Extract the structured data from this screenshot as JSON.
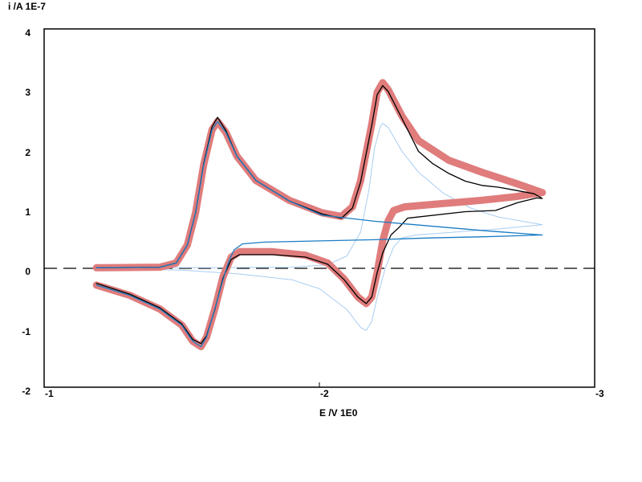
{
  "chart_data": {
    "type": "line",
    "ylabel": "i /A  1E-7",
    "xlabel": "E /V  1E0",
    "xlim": [
      -1,
      -3
    ],
    "ylim": [
      -2,
      4
    ],
    "x_ticks": [
      "-1",
      "-2",
      "-3"
    ],
    "y_ticks": [
      "4",
      "3",
      "2",
      "1",
      "0",
      "-1",
      "-2"
    ],
    "zero_line": "dashed",
    "grid": false,
    "series": [
      {
        "color": "#a8cdf2",
        "style": "thin",
        "points": [
          [
            -1.19,
            0
          ],
          [
            -1.6,
            0
          ],
          [
            -1.9,
            0.01
          ],
          [
            -2.03,
            0.05
          ],
          [
            -2.1,
            0.2
          ],
          [
            -2.15,
            0.6
          ],
          [
            -2.18,
            1.3
          ],
          [
            -2.2,
            2.0
          ],
          [
            -2.22,
            2.35
          ],
          [
            -2.23,
            2.42
          ],
          [
            -2.25,
            2.35
          ],
          [
            -2.3,
            1.95
          ],
          [
            -2.36,
            1.6
          ],
          [
            -2.45,
            1.25
          ],
          [
            -2.55,
            1.0
          ],
          [
            -2.65,
            0.85
          ],
          [
            -2.81,
            0.72
          ],
          [
            -2.65,
            0.65
          ],
          [
            -2.5,
            0.6
          ],
          [
            -2.35,
            0.55
          ],
          [
            -2.3,
            0.5
          ],
          [
            -2.27,
            0.35
          ],
          [
            -2.24,
            0.0
          ],
          [
            -2.21,
            -0.5
          ],
          [
            -2.19,
            -0.9
          ],
          [
            -2.17,
            -1.05
          ],
          [
            -2.15,
            -1.0
          ],
          [
            -2.1,
            -0.7
          ],
          [
            -2.0,
            -0.35
          ],
          [
            -1.9,
            -0.2
          ],
          [
            -1.7,
            -0.1
          ],
          [
            -1.5,
            -0.04
          ],
          [
            -1.19,
            -0.01
          ]
        ]
      },
      {
        "color": "#e07c7c",
        "style": "circles",
        "points": [
          [
            -1.19,
            0
          ],
          [
            -1.42,
            0.01
          ],
          [
            -1.48,
            0.08
          ],
          [
            -1.52,
            0.38
          ],
          [
            -1.55,
            0.92
          ],
          [
            -1.58,
            1.73
          ],
          [
            -1.61,
            2.31
          ],
          [
            -1.63,
            2.45
          ],
          [
            -1.66,
            2.27
          ],
          [
            -1.7,
            1.87
          ],
          [
            -1.77,
            1.46
          ],
          [
            -1.89,
            1.13
          ],
          [
            -2.01,
            0.92
          ],
          [
            -2.08,
            0.86
          ],
          [
            -2.12,
            1.02
          ],
          [
            -2.15,
            1.46
          ],
          [
            -2.19,
            2.4
          ],
          [
            -2.21,
            2.94
          ],
          [
            -2.23,
            3.1
          ],
          [
            -2.25,
            2.98
          ],
          [
            -2.3,
            2.54
          ],
          [
            -2.36,
            2.13
          ],
          [
            -2.47,
            1.8
          ],
          [
            -2.59,
            1.6
          ],
          [
            -2.71,
            1.42
          ],
          [
            -2.81,
            1.26
          ],
          [
            -2.71,
            1.19
          ],
          [
            -2.59,
            1.13
          ],
          [
            -2.41,
            1.06
          ],
          [
            -2.31,
            1.02
          ],
          [
            -2.27,
            0.96
          ],
          [
            -2.25,
            0.79
          ],
          [
            -2.23,
            0.45
          ],
          [
            -2.21,
            -0.08
          ],
          [
            -2.19,
            -0.49
          ],
          [
            -2.17,
            -0.6
          ],
          [
            -2.14,
            -0.49
          ],
          [
            -2.09,
            -0.19
          ],
          [
            -2.03,
            0.08
          ],
          [
            -1.95,
            0.21
          ],
          [
            -1.83,
            0.27
          ],
          [
            -1.71,
            0.27
          ],
          [
            -1.68,
            0.18
          ],
          [
            -1.65,
            -0.15
          ],
          [
            -1.62,
            -0.69
          ],
          [
            -1.59,
            -1.16
          ],
          [
            -1.57,
            -1.32
          ],
          [
            -1.54,
            -1.23
          ],
          [
            -1.5,
            -0.96
          ],
          [
            -1.42,
            -0.69
          ],
          [
            -1.31,
            -0.46
          ],
          [
            -1.19,
            -0.29
          ]
        ]
      },
      {
        "color": "#000000",
        "style": "line",
        "points": [
          [
            -1.19,
            0
          ],
          [
            -1.42,
            0.01
          ],
          [
            -1.48,
            0.08
          ],
          [
            -1.52,
            0.38
          ],
          [
            -1.55,
            0.92
          ],
          [
            -1.58,
            1.75
          ],
          [
            -1.61,
            2.36
          ],
          [
            -1.63,
            2.52
          ],
          [
            -1.66,
            2.3
          ],
          [
            -1.7,
            1.87
          ],
          [
            -1.77,
            1.46
          ],
          [
            -1.89,
            1.12
          ],
          [
            -2.01,
            0.9
          ],
          [
            -2.08,
            0.83
          ],
          [
            -2.12,
            1.0
          ],
          [
            -2.15,
            1.44
          ],
          [
            -2.19,
            2.38
          ],
          [
            -2.21,
            2.9
          ],
          [
            -2.23,
            3.05
          ],
          [
            -2.25,
            2.95
          ],
          [
            -2.3,
            2.5
          ],
          [
            -2.36,
            1.95
          ],
          [
            -2.41,
            1.75
          ],
          [
            -2.47,
            1.58
          ],
          [
            -2.53,
            1.45
          ],
          [
            -2.59,
            1.38
          ],
          [
            -2.65,
            1.35
          ],
          [
            -2.71,
            1.3
          ],
          [
            -2.78,
            1.24
          ],
          [
            -2.81,
            1.16
          ],
          [
            -2.79,
            1.17
          ],
          [
            -2.72,
            1.09
          ],
          [
            -2.64,
            0.96
          ],
          [
            -2.53,
            0.94
          ],
          [
            -2.32,
            0.83
          ],
          [
            -2.29,
            0.68
          ],
          [
            -2.26,
            0.55
          ],
          [
            -2.23,
            0.25
          ],
          [
            -2.21,
            -0.08
          ],
          [
            -2.19,
            -0.49
          ],
          [
            -2.17,
            -0.6
          ],
          [
            -2.14,
            -0.49
          ],
          [
            -2.09,
            -0.2
          ],
          [
            -2.03,
            0.06
          ],
          [
            -1.95,
            0.18
          ],
          [
            -1.83,
            0.22
          ],
          [
            -1.71,
            0.22
          ],
          [
            -1.68,
            0.14
          ],
          [
            -1.65,
            -0.17
          ],
          [
            -1.62,
            -0.7
          ],
          [
            -1.59,
            -1.14
          ],
          [
            -1.57,
            -1.27
          ],
          [
            -1.54,
            -1.2
          ],
          [
            -1.5,
            -0.94
          ],
          [
            -1.42,
            -0.67
          ],
          [
            -1.31,
            -0.44
          ],
          [
            -1.19,
            -0.26
          ]
        ]
      },
      {
        "color": "#1a7cc4",
        "style": "line",
        "points": [
          [
            -1.19,
            0
          ],
          [
            -1.42,
            0.01
          ],
          [
            -1.48,
            0.08
          ],
          [
            -1.52,
            0.38
          ],
          [
            -1.55,
            0.92
          ],
          [
            -1.58,
            1.73
          ],
          [
            -1.61,
            2.31
          ],
          [
            -1.63,
            2.45
          ],
          [
            -1.66,
            2.27
          ],
          [
            -1.7,
            1.87
          ],
          [
            -1.77,
            1.46
          ],
          [
            -1.89,
            1.12
          ],
          [
            -2.01,
            0.88
          ],
          [
            -2.2,
            0.78
          ],
          [
            -2.4,
            0.7
          ],
          [
            -2.6,
            0.62
          ],
          [
            -2.81,
            0.55
          ],
          [
            -2.6,
            0.52
          ],
          [
            -2.4,
            0.5
          ],
          [
            -2.2,
            0.47
          ],
          [
            -2.0,
            0.45
          ],
          [
            -1.8,
            0.43
          ],
          [
            -1.72,
            0.4
          ],
          [
            -1.69,
            0.3
          ],
          [
            -1.67,
            0.1
          ],
          [
            -1.65,
            -0.2
          ],
          [
            -1.62,
            -0.69
          ],
          [
            -1.59,
            -1.16
          ],
          [
            -1.57,
            -1.32
          ],
          [
            -1.54,
            -1.23
          ],
          [
            -1.5,
            -0.96
          ],
          [
            -1.42,
            -0.69
          ],
          [
            -1.31,
            -0.46
          ],
          [
            -1.19,
            -0.29
          ]
        ]
      }
    ]
  }
}
